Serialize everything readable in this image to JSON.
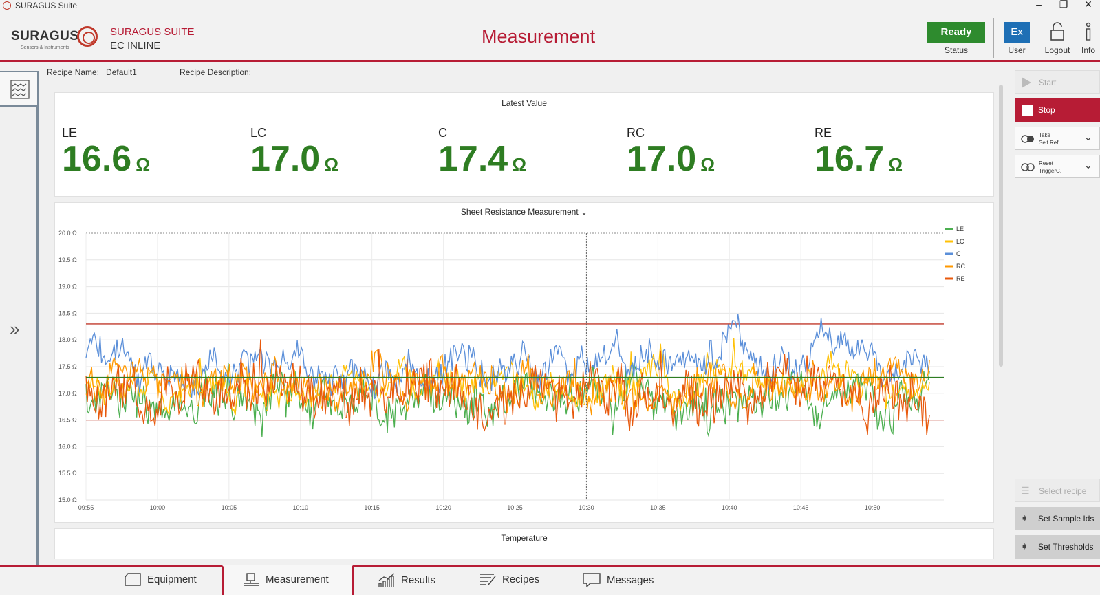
{
  "titlebar": {
    "title": "SURAGUS Suite",
    "minimize": "–",
    "restore": "❐",
    "close": "✕"
  },
  "header": {
    "logo_text": "SURAGUS",
    "logo_sub": "Sensors & Instruments",
    "suite_name": "SURAGUS SUITE",
    "suite_sub": "EC INLINE",
    "page_title": "Measurement",
    "status_value": "Ready",
    "status_label": "Status",
    "user_initials": "Ex",
    "user_label": "User",
    "logout_label": "Logout",
    "info_label": "Info"
  },
  "recipe": {
    "name_label": "Recipe Name:",
    "name_value": "Default1",
    "desc_label": "Recipe Description:"
  },
  "latest": {
    "title": "Latest Value",
    "items": [
      {
        "label": "LE",
        "value": "16.6",
        "unit": "Ω"
      },
      {
        "label": "LC",
        "value": "17.0",
        "unit": "Ω"
      },
      {
        "label": "C",
        "value": "17.4",
        "unit": "Ω"
      },
      {
        "label": "RC",
        "value": "17.0",
        "unit": "Ω"
      },
      {
        "label": "RE",
        "value": "16.7",
        "unit": "Ω"
      }
    ]
  },
  "chart_data": {
    "type": "line",
    "title": "Sheet Resistance Measurement",
    "xlabel": "",
    "ylabel": "",
    "ylim": [
      15.0,
      20.0
    ],
    "y_ticks": [
      "20.0 Ω",
      "19.5 Ω",
      "19.0 Ω",
      "18.5 Ω",
      "18.0 Ω",
      "17.5 Ω",
      "17.0 Ω",
      "16.5 Ω",
      "16.0 Ω",
      "15.5 Ω",
      "15.0 Ω"
    ],
    "x_ticks": [
      "09:55",
      "10:00",
      "10:05",
      "10:10",
      "10:15",
      "10:20",
      "10:25",
      "10:30",
      "10:35",
      "10:40",
      "10:45",
      "10:50"
    ],
    "xlim": [
      "09:55",
      "10:55"
    ],
    "grid": true,
    "legend_position": "top-right",
    "cursor_time": "10:30",
    "thresholds": {
      "upper": 18.3,
      "lower": 16.5,
      "target": 17.3
    },
    "series": [
      {
        "name": "LE",
        "color": "#4caf50",
        "mean": 16.9,
        "amp": 0.35,
        "seed": 11
      },
      {
        "name": "LC",
        "color": "#ffc107",
        "mean": 17.2,
        "amp": 0.25,
        "seed": 23
      },
      {
        "name": "C",
        "color": "#5b8fd9",
        "mean": 17.55,
        "amp": 0.25,
        "seed": 37
      },
      {
        "name": "RC",
        "color": "#ff9800",
        "mean": 17.15,
        "amp": 0.3,
        "seed": 51
      },
      {
        "name": "RE",
        "color": "#e8590c",
        "mean": 17.05,
        "amp": 0.45,
        "seed": 67
      }
    ]
  },
  "temperature": {
    "title": "Temperature"
  },
  "right": {
    "start": "Start",
    "stop": "Stop",
    "take_self_ref_1": "Take",
    "take_self_ref_2": "Self Ref",
    "reset_trigger_1": "Reset",
    "reset_trigger_2": "TriggerC.",
    "select_recipe": "Select recipe",
    "set_sample_ids": "Set Sample Ids",
    "set_thresholds": "Set Thresholds"
  },
  "nav": {
    "equipment": "Equipment",
    "measurement": "Measurement",
    "results": "Results",
    "recipes": "Recipes",
    "messages": "Messages"
  }
}
